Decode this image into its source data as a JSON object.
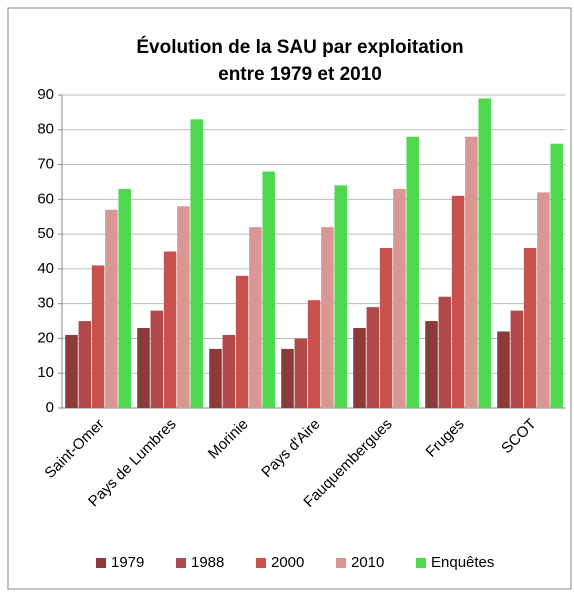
{
  "chart_data": {
    "type": "bar",
    "title": [
      "Évolution de la SAU par exploitation",
      "entre 1979 et 2010"
    ],
    "categories": [
      "Saint-Omer",
      "Pays de Lumbres",
      "Morinie",
      "Pays d'Aire",
      "Fauquembergues",
      "Fruges",
      "SCOT"
    ],
    "series": [
      {
        "name": "1979",
        "color": "#8b3a3a",
        "values": [
          21,
          23,
          17,
          17,
          23,
          25,
          22
        ]
      },
      {
        "name": "1988",
        "color": "#b04a4a",
        "values": [
          25,
          28,
          21,
          20,
          29,
          32,
          28
        ]
      },
      {
        "name": "2000",
        "color": "#c9504f",
        "values": [
          41,
          45,
          38,
          31,
          46,
          61,
          46
        ]
      },
      {
        "name": "2010",
        "color": "#d99694",
        "values": [
          57,
          58,
          52,
          52,
          63,
          78,
          62
        ]
      },
      {
        "name": "Enquêtes",
        "color": "#4fd84f",
        "values": [
          63,
          83,
          68,
          64,
          78,
          89,
          76
        ]
      }
    ],
    "ylim": [
      0,
      90
    ],
    "yticks": [
      0,
      10,
      20,
      30,
      40,
      50,
      60,
      70,
      80,
      90
    ],
    "grid": true,
    "legend": "bottom"
  }
}
